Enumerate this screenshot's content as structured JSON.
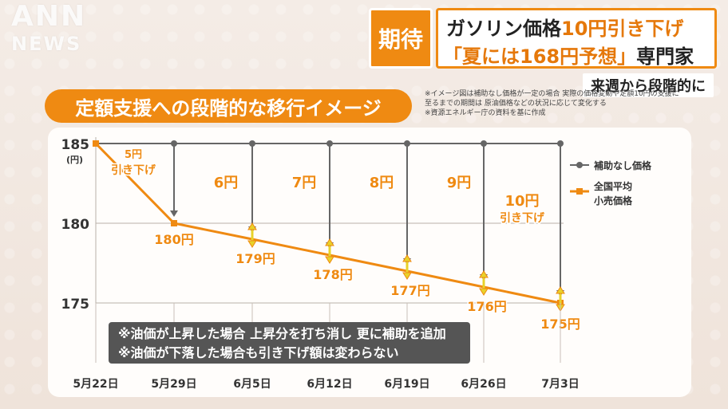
{
  "logo": {
    "line1": "ANN",
    "line2": "NEWS"
  },
  "badge": "期待",
  "headline": {
    "l1_pre": "ガソリン価格",
    "l1_accent": "10円引き下げ",
    "l2_accent": "「夏には168円予想」",
    "l2_post": "専門家"
  },
  "subcaption": "来週から段階的に",
  "chart_title": "定額支援への段階的な移行イメージ",
  "notes": [
    "※イメージ図は補助なし価格が一定の場合 実際の価格変動や定額10円の支援に",
    "至るまでの期間は 原油価格などの状況に応じて変化する",
    "※資源エネルギー庁の資料を基に作成"
  ],
  "callout": [
    "※油価が上昇した場合 上昇分を打ち消し 更に補助を追加",
    "※油価が下落した場合も引き下げ額は変わらない"
  ],
  "colors": {
    "orange": "#ef8a12",
    "gray": "#666666",
    "panel": "#fffdfb"
  },
  "chart_data": {
    "type": "line",
    "x": [
      "5月22日",
      "5月29日",
      "6月5日",
      "6月12日",
      "6月19日",
      "6月26日",
      "7月3日"
    ],
    "ylim": [
      172,
      186
    ],
    "yticks": [
      185,
      180,
      175
    ],
    "yunit": "(円)",
    "series": [
      {
        "name": "補助なし価格",
        "color": "#666666",
        "values": [
          185,
          185,
          185,
          185,
          185,
          185,
          185
        ]
      },
      {
        "name": "全国平均\n小売価格",
        "color": "#ef8a12",
        "values": [
          185,
          180,
          179,
          178,
          177,
          176,
          175
        ]
      }
    ],
    "point_labels": [
      "",
      "180円",
      "179円",
      "178円",
      "177円",
      "176円",
      "175円"
    ],
    "reduction_labels": [
      "5円\n引き下げ",
      "6円",
      "7円",
      "8円",
      "9円",
      "10円\n引き下げ"
    ]
  }
}
